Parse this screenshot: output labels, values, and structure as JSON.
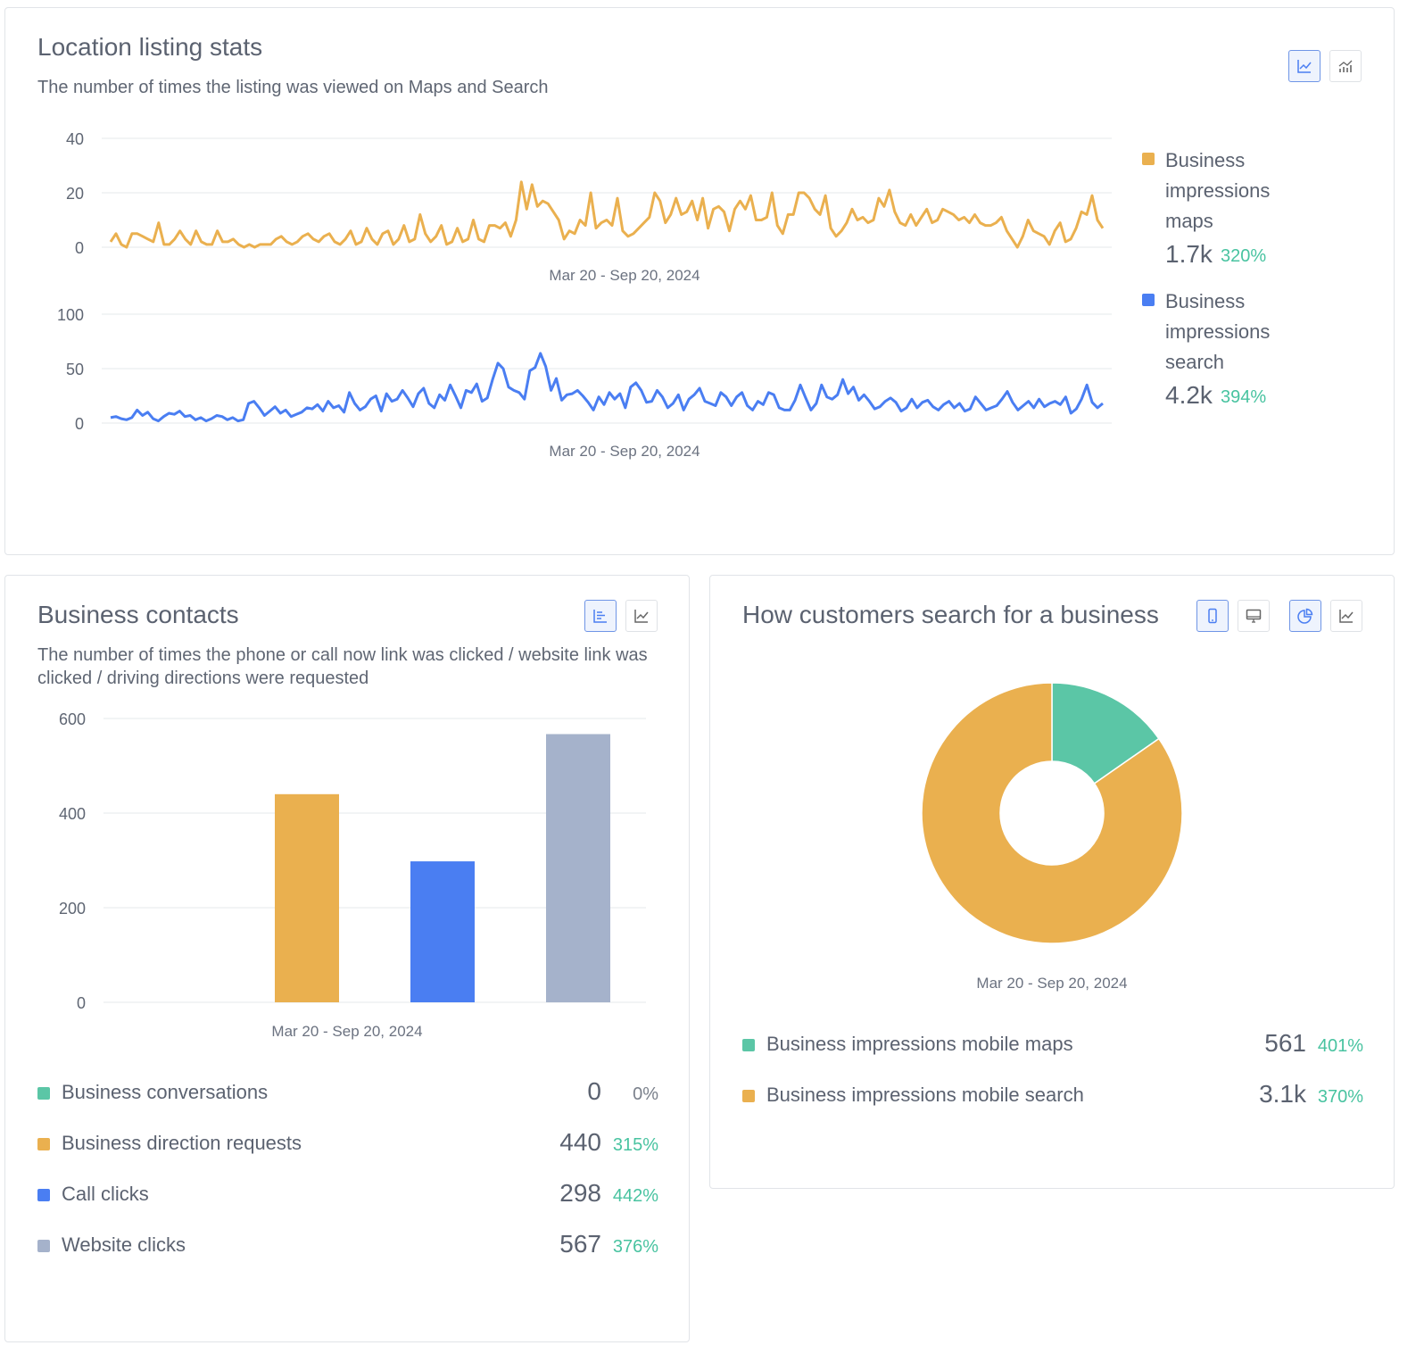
{
  "colors": {
    "orange": "#eab04f",
    "blue": "#4a7ef2",
    "grey": "#a5b2cb",
    "teal": "#5bc6a6",
    "positive": "#48c3a0"
  },
  "location": {
    "title": "Location listing stats",
    "subtitle": "The number of times the listing was viewed on Maps and Search",
    "icons": [
      "line-chart-icon",
      "bar-line-chart-icon"
    ],
    "legend": [
      {
        "label_lines": [
          "Business",
          "impressions",
          "maps"
        ],
        "value": "1.7k",
        "pct": "320%",
        "color": "#eab04f"
      },
      {
        "label_lines": [
          "Business",
          "impressions",
          "search"
        ],
        "value": "4.2k",
        "pct": "394%",
        "color": "#4a7ef2"
      }
    ]
  },
  "contacts": {
    "title": "Business contacts",
    "subtitle": "The number of times the phone or call now link was clicked / website link was clicked / driving directions were requested",
    "icons": [
      "bar-chart-icon",
      "line-chart-icon"
    ],
    "legend": [
      {
        "label": "Business conversations",
        "value": "0",
        "pct": "0%",
        "color": "#5bc6a6"
      },
      {
        "label": "Business direction requests",
        "value": "440",
        "pct": "315%",
        "color": "#eab04f"
      },
      {
        "label": "Call clicks",
        "value": "298",
        "pct": "442%",
        "color": "#4a7ef2"
      },
      {
        "label": "Website clicks",
        "value": "567",
        "pct": "376%",
        "color": "#a5b2cb"
      }
    ]
  },
  "search": {
    "title": "How customers search for a business",
    "icons": [
      "mobile-icon",
      "desktop-icon",
      "pie-chart-icon",
      "line-chart-icon"
    ],
    "legend": [
      {
        "label": "Business impressions mobile maps",
        "value": "561",
        "pct": "401%",
        "color": "#5bc6a6"
      },
      {
        "label": "Business impressions mobile search",
        "value": "3.1k",
        "pct": "370%",
        "color": "#eab04f"
      }
    ]
  },
  "chart_data": [
    {
      "type": "line",
      "series": [
        {
          "name": "Business impressions maps",
          "color": "#eab04f",
          "values": [
            2,
            5,
            1,
            0,
            5,
            5,
            4,
            3,
            2,
            9,
            1,
            1,
            3,
            6,
            3,
            1,
            6,
            2,
            1,
            1,
            6,
            2,
            2,
            3,
            1,
            0,
            1,
            0,
            1,
            1,
            1,
            3,
            4,
            2,
            1,
            2,
            4,
            5,
            3,
            2,
            4,
            5,
            2,
            1,
            3,
            6,
            1,
            2,
            7,
            3,
            1,
            5,
            6,
            1,
            3,
            8,
            2,
            3,
            12,
            5,
            2,
            4,
            8,
            1,
            2,
            7,
            2,
            3,
            10,
            3,
            2,
            8,
            8,
            7,
            9,
            4,
            10,
            24,
            14,
            23,
            15,
            17,
            16,
            13,
            10,
            3,
            6,
            5,
            10,
            8,
            20,
            7,
            9,
            10,
            8,
            18,
            6,
            4,
            5,
            7,
            9,
            11,
            20,
            17,
            9,
            12,
            18,
            12,
            13,
            17,
            10,
            18,
            7,
            14,
            15,
            13,
            6,
            14,
            17,
            14,
            19,
            10,
            10,
            11,
            20,
            8,
            5,
            12,
            12,
            20,
            20,
            18,
            14,
            12,
            19,
            7,
            4,
            6,
            9,
            14,
            10,
            11,
            9,
            10,
            18,
            15,
            21,
            13,
            9,
            8,
            12,
            8,
            11,
            14,
            9,
            10,
            14,
            13,
            12,
            10,
            11,
            9,
            12,
            9,
            8,
            8,
            9,
            11,
            6,
            3,
            0,
            4,
            10,
            6,
            5,
            4,
            1,
            6,
            9,
            2,
            3,
            7,
            13,
            12,
            19,
            10,
            7
          ]
        }
      ],
      "ylim": [
        0,
        40
      ],
      "yticks": [
        0,
        20,
        40
      ],
      "xlabel": "Mar 20 - Sep 20, 2024"
    },
    {
      "type": "line",
      "series": [
        {
          "name": "Business impressions search",
          "color": "#4a7ef2",
          "values": [
            5,
            6,
            4,
            3,
            5,
            12,
            7,
            10,
            4,
            2,
            6,
            9,
            8,
            11,
            6,
            7,
            3,
            5,
            2,
            4,
            7,
            6,
            3,
            5,
            2,
            3,
            18,
            20,
            14,
            7,
            11,
            15,
            9,
            12,
            6,
            8,
            10,
            14,
            13,
            17,
            11,
            20,
            14,
            16,
            10,
            28,
            18,
            12,
            15,
            22,
            25,
            11,
            27,
            20,
            22,
            30,
            23,
            15,
            27,
            32,
            18,
            14,
            26,
            21,
            35,
            25,
            14,
            30,
            28,
            36,
            20,
            23,
            40,
            55,
            50,
            33,
            30,
            28,
            22,
            48,
            51,
            64,
            52,
            30,
            41,
            21,
            26,
            27,
            30,
            25,
            19,
            12,
            24,
            17,
            28,
            22,
            27,
            14,
            33,
            37,
            30,
            19,
            20,
            30,
            24,
            14,
            18,
            26,
            12,
            22,
            26,
            32,
            20,
            18,
            16,
            28,
            24,
            16,
            24,
            28,
            16,
            12,
            20,
            17,
            28,
            26,
            14,
            12,
            12,
            21,
            35,
            23,
            12,
            18,
            35,
            24,
            22,
            26,
            40,
            27,
            33,
            21,
            26,
            20,
            13,
            15,
            20,
            23,
            19,
            11,
            14,
            22,
            14,
            19,
            21,
            15,
            12,
            17,
            20,
            14,
            18,
            11,
            13,
            24,
            18,
            12,
            14,
            16,
            22,
            29,
            19,
            12,
            16,
            20,
            14,
            22,
            15,
            18,
            20,
            17,
            24,
            9,
            13,
            22,
            35,
            19,
            14,
            18
          ]
        }
      ],
      "ylim": [
        0,
        100
      ],
      "yticks": [
        0,
        50,
        100
      ],
      "xlabel": "Mar 20 - Sep 20, 2024"
    },
    {
      "type": "bar",
      "categories": [
        "Business conversations",
        "Business direction requests",
        "Call clicks",
        "Website clicks"
      ],
      "values": [
        0,
        440,
        298,
        567
      ],
      "colors": [
        "#5bc6a6",
        "#eab04f",
        "#4a7ef2",
        "#a5b2cb"
      ],
      "ylim": [
        0,
        600
      ],
      "yticks": [
        0,
        200,
        400,
        600
      ],
      "xlabel": "Mar 20 - Sep 20, 2024"
    },
    {
      "type": "pie",
      "donut": true,
      "labels": [
        "Business impressions mobile maps",
        "Business impressions mobile search"
      ],
      "values": [
        561,
        3100
      ],
      "colors": [
        "#5bc6a6",
        "#eab04f"
      ],
      "xlabel": "Mar 20 - Sep 20, 2024"
    }
  ]
}
